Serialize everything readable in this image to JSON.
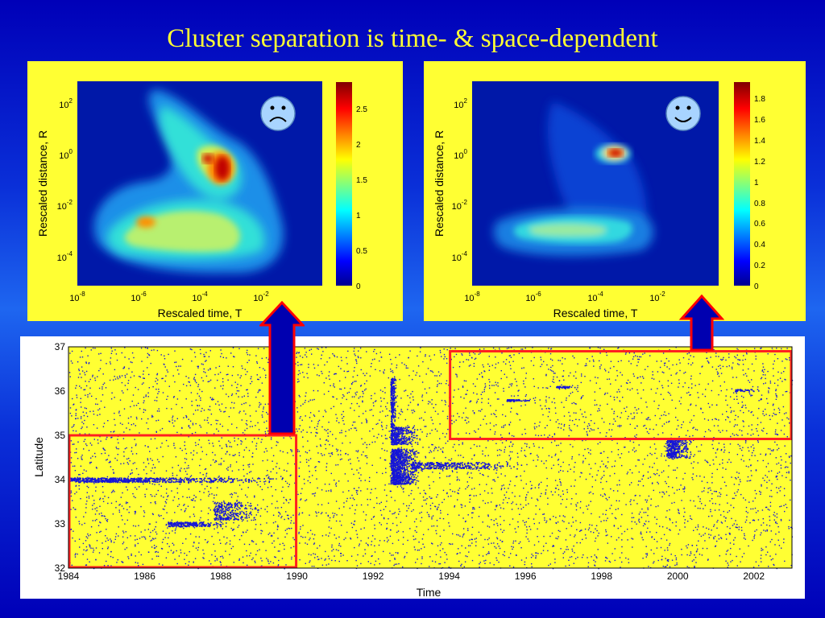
{
  "slide": {
    "title": "Cluster separation is time- & space-dependent"
  },
  "heatmaps": [
    {
      "xlabel": "Rescaled time, T",
      "ylabel": "Rescaled distance, R",
      "x_ticks": [
        "10-8",
        "10-6",
        "10-4",
        "10-2"
      ],
      "y_ticks": [
        "102",
        "100",
        "10-2",
        "10-4"
      ],
      "colorbar_ticks": [
        "0",
        "0.5",
        "1",
        "1.5",
        "2",
        "2.5"
      ],
      "face": "sad-face-icon"
    },
    {
      "xlabel": "Rescaled time, T",
      "ylabel": "Rescaled distance, R",
      "x_ticks": [
        "10-8",
        "10-6",
        "10-4",
        "10-2"
      ],
      "y_ticks": [
        "102",
        "100",
        "10-2",
        "10-4"
      ],
      "colorbar_ticks": [
        "0",
        "0.2",
        "0.4",
        "0.6",
        "0.8",
        "1",
        "1.2",
        "1.4",
        "1.6",
        "1.8"
      ],
      "face": "smiley-face-icon"
    }
  ],
  "scatter": {
    "xlabel": "Time",
    "ylabel": "Latitude",
    "x_ticks": [
      "1984",
      "1986",
      "1988",
      "1990",
      "1992",
      "1994",
      "1996",
      "1998",
      "2000",
      "2002"
    ],
    "y_ticks": [
      "32",
      "33",
      "34",
      "35",
      "36",
      "37"
    ],
    "xlim": [
      1984,
      2003
    ],
    "ylim": [
      32,
      37
    ],
    "highlight_boxes": [
      {
        "x": [
          1984,
          1990
        ],
        "y": [
          32,
          35
        ]
      },
      {
        "x": [
          1994,
          2003
        ],
        "y": [
          34.9,
          36.9
        ]
      }
    ]
  },
  "colors": {
    "highlight_box": "#ff2020",
    "arrow_fill": "#0000b0",
    "arrow_outline": "#ff0000",
    "panel": "#ffff33",
    "points": "#1515d8"
  }
}
